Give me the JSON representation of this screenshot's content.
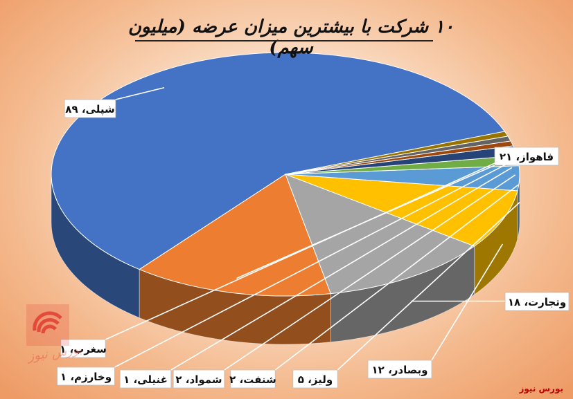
{
  "title": "۱۰ شرکت با بیشترین میزان عرضه (میلیون سهم)",
  "source_label": "بورس نیوز",
  "watermark_text": "بورس نیوز",
  "chart_data": {
    "type": "pie",
    "three_d": true,
    "title": "۱۰ شرکت با بیشترین میزان عرضه (میلیون سهم)",
    "categories": [
      "شپلی",
      "فاهواز",
      "وتجارت",
      "وبصادر",
      "ولیز",
      "شنفت",
      "شمواد",
      "غنیلی",
      "وخارزم",
      "سغرب"
    ],
    "values": [
      89,
      21,
      18,
      12,
      5,
      2,
      2,
      1,
      1,
      1
    ],
    "labels": [
      "شپلی، ۸۹",
      "فاهواز، ۲۱",
      "وتجارت، ۱۸",
      "وبصادر، ۱۲",
      "ولیز، ۵",
      "شنفت، ۲",
      "شمواد، ۲",
      "غنیلی، ۱",
      "وخارزم، ۱",
      "سغرب، ۱"
    ],
    "colors": [
      "#4472c4",
      "#ed7d31",
      "#a5a5a5",
      "#ffc000",
      "#5b9bd5",
      "#70ad47",
      "#264478",
      "#9e480e",
      "#636363",
      "#997300"
    ]
  }
}
